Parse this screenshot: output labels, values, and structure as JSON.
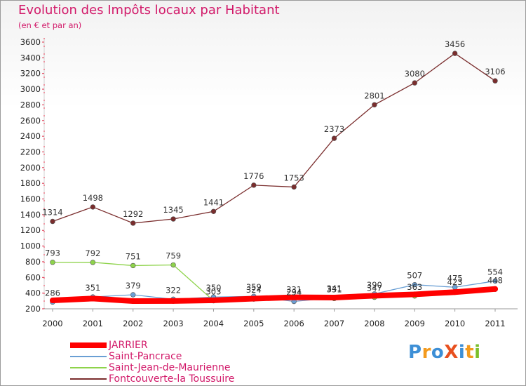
{
  "title": "Evolution des Impôts locaux par Habitant",
  "subtitle": "(en € et par an)",
  "logo": {
    "text": "ProXiti",
    "letters": [
      {
        "ch": "P",
        "color": "#3d8fd6"
      },
      {
        "ch": "r",
        "color": "#f39a1e"
      },
      {
        "ch": "o",
        "color": "#3d8fd6"
      },
      {
        "ch": "X",
        "color": "#e8501f"
      },
      {
        "ch": "i",
        "color": "#3d8fd6"
      },
      {
        "ch": "t",
        "color": "#f39a1e"
      },
      {
        "ch": "i",
        "color": "#7bbf2b"
      }
    ]
  },
  "chart_data": {
    "type": "line",
    "title": "Evolution des Impôts locaux par Habitant",
    "subtitle": "(en € et par an)",
    "xlabel": "",
    "ylabel": "",
    "x": [
      "2000",
      "2001",
      "2002",
      "2003",
      "2004",
      "2005",
      "2006",
      "2007",
      "2008",
      "2009",
      "2010",
      "2011"
    ],
    "ylim": [
      200,
      3600
    ],
    "yticks": [
      200,
      400,
      600,
      800,
      1000,
      1200,
      1400,
      1600,
      1800,
      2000,
      2200,
      2400,
      2600,
      2800,
      3000,
      3200,
      3400,
      3600
    ],
    "grid": false,
    "legend_position": "bottom-left",
    "series": [
      {
        "name": "JARRIER",
        "color": "#ff0000",
        "values": [
          307,
          331,
          298,
          299,
          309,
          330,
          347,
          343,
          367,
          384,
          413,
          453
        ],
        "show_labels": false,
        "thick": true
      },
      {
        "name": "Saint-Pancrace",
        "color": "#6a9fd4",
        "values": [
          286,
          351,
          379,
          322,
          350,
          359,
          294,
          341,
          390,
          507,
          475,
          554
        ],
        "show_labels": true,
        "thick": false
      },
      {
        "name": "Saint-Jean-de-Maurienne",
        "color": "#8ed34b",
        "values": [
          793,
          792,
          751,
          759,
          303,
          324,
          331,
          331,
          347,
          363,
          423,
          448
        ],
        "show_labels": true,
        "thick": false
      },
      {
        "name": "Fontcouverte-la Toussuire",
        "color": "#7a2d2d",
        "values": [
          1314,
          1498,
          1292,
          1345,
          1441,
          1776,
          1753,
          2373,
          2801,
          3080,
          3456,
          3106
        ],
        "show_labels": true,
        "thick": false
      }
    ]
  }
}
